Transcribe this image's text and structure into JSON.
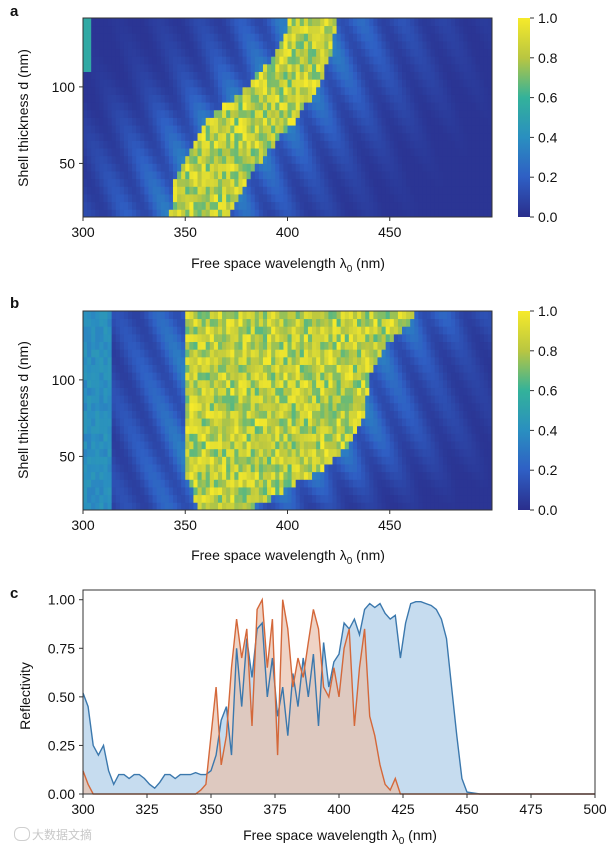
{
  "watermark": "大数据文摘",
  "chart_data": [
    {
      "panel": "a",
      "type": "heatmap",
      "xlabel": "Free space wavelength λ0 (nm)",
      "ylabel": "Shell thickness d (nm)",
      "xlim": [
        300,
        500
      ],
      "ylim": [
        15,
        145
      ],
      "xticks": [
        300,
        350,
        400,
        450
      ],
      "yticks": [
        50,
        100
      ],
      "colorbar": {
        "range": [
          0,
          1
        ],
        "ticks": [
          "0.0",
          "0.2",
          "0.4",
          "0.6",
          "0.8",
          "1.0"
        ]
      },
      "colormap": [
        "#440154",
        "#3b528b",
        "#21918c",
        "#5ec962",
        "#fde725"
      ],
      "band_edges_nm": [
        {
          "d": 20,
          "start": 343,
          "end": 372
        },
        {
          "d": 40,
          "start": 345,
          "end": 380
        },
        {
          "d": 60,
          "start": 352,
          "end": 392
        },
        {
          "d": 80,
          "start": 362,
          "end": 405
        },
        {
          "d": 100,
          "start": 380,
          "end": 415
        },
        {
          "d": 120,
          "start": 393,
          "end": 421
        },
        {
          "d": 140,
          "start": 400,
          "end": 424
        }
      ]
    },
    {
      "panel": "b",
      "type": "heatmap",
      "xlabel": "Free space wavelength λ0 (nm)",
      "ylabel": "Shell thickness d (nm)",
      "xlim": [
        300,
        500
      ],
      "ylim": [
        15,
        145
      ],
      "xticks": [
        300,
        350,
        400,
        450
      ],
      "yticks": [
        50,
        100
      ],
      "colorbar": {
        "range": [
          0,
          1
        ],
        "ticks": [
          "0.0",
          "0.2",
          "0.4",
          "0.6",
          "0.8",
          "1.0"
        ]
      },
      "colormap": [
        "#440154",
        "#3b528b",
        "#21918c",
        "#5ec962",
        "#fde725"
      ],
      "band_edges_nm": [
        {
          "d": 20,
          "start": 355,
          "end": 388
        },
        {
          "d": 40,
          "start": 350,
          "end": 415
        },
        {
          "d": 60,
          "start": 350,
          "end": 432
        },
        {
          "d": 80,
          "start": 350,
          "end": 438
        },
        {
          "d": 100,
          "start": 350,
          "end": 440
        },
        {
          "d": 120,
          "start": 350,
          "end": 447
        },
        {
          "d": 140,
          "start": 350,
          "end": 461
        }
      ]
    },
    {
      "panel": "c",
      "type": "area",
      "xlabel": "Free space wavelength λ0 (nm)",
      "ylabel": "Reflectivity",
      "xlim": [
        300,
        500
      ],
      "ylim": [
        0,
        1.05
      ],
      "xticks": [
        300,
        325,
        350,
        375,
        400,
        425,
        450,
        475,
        500
      ],
      "yticks": [
        0,
        0.25,
        0.5,
        0.75,
        1.0
      ],
      "ytick_labels": [
        "0.00",
        "0.25",
        "0.50",
        "0.75",
        "1.00"
      ],
      "series": [
        {
          "color": "#3b78ad",
          "fill": "#bcd6ec",
          "x": [
            300,
            302,
            304,
            306,
            308,
            310,
            312,
            314,
            316,
            318,
            320,
            322,
            324,
            326,
            328,
            330,
            332,
            334,
            336,
            338,
            340,
            342,
            344,
            346,
            348,
            350,
            352,
            354,
            356,
            358,
            360,
            362,
            364,
            366,
            368,
            370,
            372,
            374,
            376,
            378,
            380,
            382,
            384,
            386,
            388,
            390,
            392,
            394,
            396,
            398,
            400,
            402,
            404,
            406,
            408,
            410,
            412,
            414,
            416,
            418,
            420,
            422,
            424,
            426,
            428,
            430,
            432,
            434,
            436,
            438,
            440,
            442,
            444,
            446,
            448,
            450,
            455,
            460,
            470,
            480,
            490,
            500
          ],
          "y": [
            0.52,
            0.45,
            0.25,
            0.2,
            0.25,
            0.12,
            0.05,
            0.1,
            0.1,
            0.08,
            0.1,
            0.1,
            0.08,
            0.05,
            0.03,
            0.06,
            0.1,
            0.1,
            0.08,
            0.1,
            0.1,
            0.1,
            0.11,
            0.1,
            0.1,
            0.12,
            0.2,
            0.38,
            0.45,
            0.2,
            0.75,
            0.45,
            0.8,
            0.6,
            0.85,
            0.88,
            0.5,
            0.7,
            0.4,
            0.55,
            0.3,
            0.62,
            0.45,
            0.7,
            0.5,
            0.72,
            0.35,
            0.78,
            0.55,
            0.68,
            0.72,
            0.88,
            0.85,
            0.9,
            0.82,
            0.95,
            0.98,
            0.96,
            0.98,
            0.93,
            0.9,
            0.92,
            0.7,
            0.88,
            0.98,
            0.99,
            0.99,
            0.98,
            0.97,
            0.95,
            0.9,
            0.8,
            0.55,
            0.3,
            0.08,
            0.01,
            0.0,
            0.0,
            0.0,
            0.0,
            0.0,
            0.0
          ]
        },
        {
          "color": "#d4683a",
          "fill": "#e8c1ac",
          "x": [
            300,
            302,
            304,
            306,
            308,
            310,
            320,
            330,
            340,
            344,
            346,
            348,
            350,
            352,
            354,
            356,
            358,
            360,
            362,
            364,
            366,
            368,
            370,
            372,
            374,
            376,
            378,
            380,
            382,
            384,
            386,
            388,
            390,
            392,
            394,
            396,
            398,
            400,
            402,
            404,
            406,
            408,
            410,
            412,
            414,
            416,
            418,
            420,
            422,
            424,
            426,
            430,
            440,
            450,
            460,
            470,
            480,
            490,
            500
          ],
          "y": [
            0.12,
            0.05,
            0.0,
            0.0,
            0.0,
            0.0,
            0.0,
            0.0,
            0.0,
            0.0,
            0.02,
            0.05,
            0.3,
            0.55,
            0.15,
            0.3,
            0.65,
            0.9,
            0.7,
            0.85,
            0.35,
            0.95,
            1.0,
            0.65,
            0.9,
            0.2,
            1.0,
            0.85,
            0.55,
            0.7,
            0.6,
            0.78,
            0.95,
            0.85,
            0.55,
            0.5,
            0.65,
            0.5,
            0.75,
            0.85,
            0.35,
            0.65,
            0.85,
            0.4,
            0.3,
            0.15,
            0.05,
            0.02,
            0.08,
            0.0,
            0.0,
            0.0,
            0.0,
            0.0,
            0.0,
            0.0,
            0.0,
            0.0,
            0.0
          ]
        }
      ]
    }
  ],
  "panels": [
    {
      "label": "a"
    },
    {
      "label": "b"
    },
    {
      "label": "c"
    }
  ]
}
